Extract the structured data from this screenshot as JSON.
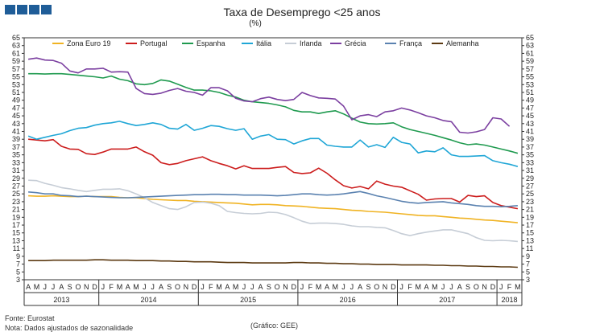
{
  "header": {
    "title": "Taxa de Desemprego <25 anos",
    "subtitle": "(%)"
  },
  "footer": {
    "source": "Fonte: Eurostat",
    "note": "Nota: Dados ajustados de sazonalidade",
    "credit": "(Gráfico: GEE)"
  },
  "colors": {
    "logo": "#1f5d98",
    "axis": "#333333"
  },
  "chart_data": {
    "type": "line",
    "title": "Taxa de Desemprego <25 anos",
    "subtitle": "(%)",
    "xlabel": "",
    "ylabel": "%",
    "ylim": [
      3,
      65
    ],
    "yticks": [
      3,
      5,
      7,
      9,
      11,
      13,
      15,
      17,
      19,
      21,
      23,
      25,
      27,
      29,
      31,
      33,
      35,
      37,
      39,
      41,
      43,
      45,
      47,
      49,
      51,
      53,
      55,
      57,
      59,
      61,
      63,
      65
    ],
    "grid": false,
    "legend_position": "top",
    "month_labels": [
      "A",
      "M",
      "J",
      "J",
      "A",
      "S",
      "O",
      "N",
      "D",
      "J",
      "F",
      "M",
      "A",
      "M",
      "J",
      "J",
      "A",
      "S",
      "O",
      "N",
      "D",
      "J",
      "F",
      "M",
      "A",
      "M",
      "J",
      "J",
      "A",
      "S",
      "O",
      "N",
      "D",
      "J",
      "F",
      "M",
      "A",
      "M",
      "J",
      "J",
      "A",
      "S",
      "O",
      "N",
      "D",
      "J",
      "F",
      "M",
      "A",
      "M",
      "J",
      "J",
      "A",
      "S",
      "O",
      "N",
      "D",
      "J",
      "F",
      "M"
    ],
    "year_groups": [
      {
        "label": "2013",
        "start": 0,
        "count": 9
      },
      {
        "label": "2014",
        "start": 9,
        "count": 12
      },
      {
        "label": "2015",
        "start": 21,
        "count": 12
      },
      {
        "label": "2016",
        "start": 33,
        "count": 12
      },
      {
        "label": "2017",
        "start": 45,
        "count": 12
      },
      {
        "label": "2018",
        "start": 57,
        "count": 3
      }
    ],
    "series": [
      {
        "name": "Zona Euro 19",
        "color": "#f0b323",
        "values": [
          24.5,
          24.4,
          24.4,
          24.5,
          24.4,
          24.3,
          24.3,
          24.4,
          24.3,
          24.3,
          24.3,
          24.1,
          24.0,
          24.0,
          23.8,
          23.6,
          23.5,
          23.4,
          23.3,
          23.3,
          23.1,
          23.0,
          22.9,
          22.8,
          22.7,
          22.6,
          22.4,
          22.2,
          22.3,
          22.3,
          22.2,
          22.0,
          21.9,
          21.8,
          21.6,
          21.4,
          21.3,
          21.2,
          21.0,
          20.8,
          20.7,
          20.5,
          20.4,
          20.3,
          20.1,
          19.9,
          19.7,
          19.5,
          19.4,
          19.4,
          19.2,
          19.0,
          18.8,
          18.7,
          18.5,
          18.3,
          18.2,
          18.0,
          17.8,
          17.6
        ]
      },
      {
        "name": "Portugal",
        "color": "#cc1d1d",
        "values": [
          39.0,
          38.8,
          38.6,
          38.9,
          37.2,
          36.5,
          36.4,
          35.3,
          35.1,
          35.7,
          36.5,
          36.5,
          36.5,
          37.0,
          35.8,
          34.9,
          33.0,
          32.5,
          32.8,
          33.5,
          34.0,
          34.5,
          33.5,
          32.8,
          32.2,
          31.4,
          32.2,
          31.5,
          31.5,
          31.5,
          31.8,
          32.0,
          30.5,
          30.2,
          30.4,
          31.6,
          30.3,
          28.6,
          27.1,
          26.5,
          26.9,
          26.3,
          28.3,
          27.5,
          27.0,
          26.7,
          25.8,
          24.9,
          23.4,
          23.7,
          23.8,
          23.8,
          22.9,
          24.6,
          24.3,
          24.5,
          22.8,
          22.0,
          21.6,
          21.2
        ]
      },
      {
        "name": "Espanha",
        "color": "#1f9a4f",
        "values": [
          55.8,
          55.8,
          55.7,
          55.8,
          55.8,
          55.6,
          55.4,
          55.2,
          55.0,
          54.7,
          55.2,
          54.4,
          54.0,
          53.2,
          53.0,
          53.3,
          54.2,
          53.9,
          53.1,
          52.3,
          51.6,
          51.6,
          51.4,
          51.0,
          50.3,
          49.8,
          49.0,
          48.6,
          48.4,
          48.2,
          47.8,
          47.3,
          46.4,
          46.0,
          46.0,
          45.6,
          46.0,
          46.3,
          45.5,
          44.4,
          43.4,
          43.0,
          42.9,
          43.0,
          43.2,
          42.2,
          41.5,
          41.0,
          40.5,
          40.0,
          39.4,
          38.8,
          38.1,
          37.6,
          37.8,
          37.5,
          37.0,
          36.5,
          36.0,
          35.4
        ]
      },
      {
        "name": "Itália",
        "color": "#1fa6d6",
        "values": [
          39.8,
          39.0,
          39.5,
          40.0,
          40.4,
          41.2,
          41.8,
          42.0,
          42.6,
          43.0,
          43.2,
          43.6,
          43.0,
          42.5,
          42.8,
          43.2,
          42.8,
          41.8,
          41.6,
          42.8,
          41.3,
          41.8,
          42.5,
          42.3,
          41.7,
          41.3,
          41.7,
          39.0,
          39.8,
          40.2,
          39.0,
          38.9,
          37.8,
          38.6,
          39.2,
          39.2,
          37.5,
          37.2,
          37.0,
          37.0,
          38.8,
          37.0,
          37.6,
          36.9,
          39.5,
          38.2,
          37.8,
          35.5,
          36.0,
          35.8,
          36.8,
          35.0,
          34.6,
          34.6,
          34.7,
          34.8,
          33.5,
          33.0,
          32.6,
          32.0
        ]
      },
      {
        "name": "Irlanda",
        "color": "#c6cdd6",
        "values": [
          28.5,
          28.4,
          27.7,
          27.2,
          26.6,
          26.3,
          25.9,
          25.6,
          25.9,
          26.2,
          26.2,
          26.3,
          25.8,
          25.0,
          24.0,
          22.8,
          22.0,
          21.2,
          21.0,
          21.7,
          22.8,
          22.9,
          22.6,
          22.0,
          20.5,
          20.2,
          20.0,
          19.9,
          20.0,
          20.3,
          20.2,
          19.7,
          18.9,
          18.0,
          17.4,
          17.5,
          17.5,
          17.4,
          17.2,
          16.8,
          16.6,
          16.6,
          16.4,
          16.3,
          15.6,
          14.8,
          14.3,
          14.8,
          15.2,
          15.5,
          15.8,
          15.8,
          15.3,
          14.8,
          13.8,
          13.1,
          13.0,
          13.1,
          13.0,
          12.8
        ]
      },
      {
        "name": "Grécia",
        "color": "#7b3fa0",
        "values": [
          59.5,
          59.8,
          59.3,
          59.2,
          58.5,
          56.5,
          56.0,
          57.0,
          57.0,
          57.2,
          56.2,
          56.3,
          56.2,
          52.0,
          50.7,
          50.5,
          50.8,
          51.5,
          52.0,
          51.3,
          51.0,
          50.3,
          52.2,
          52.2,
          51.4,
          49.5,
          48.8,
          48.6,
          49.4,
          49.8,
          49.2,
          48.9,
          49.2,
          51.0,
          50.2,
          49.6,
          49.5,
          49.3,
          47.5,
          44.0,
          45.0,
          45.3,
          44.8,
          46.0,
          46.3,
          47.0,
          46.5,
          45.8,
          45.0,
          44.5,
          43.8,
          43.5,
          40.8,
          40.6,
          40.9,
          41.5,
          44.5,
          44.2,
          42.3,
          null
        ]
      },
      {
        "name": "França",
        "color": "#5b82b0",
        "values": [
          25.5,
          25.3,
          25.0,
          25.0,
          24.6,
          24.5,
          24.3,
          24.4,
          24.3,
          24.2,
          24.1,
          24.0,
          24.0,
          24.1,
          24.2,
          24.3,
          24.4,
          24.5,
          24.6,
          24.7,
          24.8,
          24.8,
          24.9,
          24.9,
          24.8,
          24.8,
          24.7,
          24.7,
          24.7,
          24.6,
          24.5,
          24.6,
          24.8,
          25.0,
          25.0,
          24.8,
          24.7,
          24.8,
          25.0,
          25.3,
          25.6,
          25.1,
          24.5,
          24.1,
          23.6,
          23.1,
          22.8,
          22.6,
          22.8,
          22.9,
          23.0,
          22.7,
          22.5,
          22.3,
          22.0,
          21.8,
          21.8,
          21.7,
          21.8,
          22.0
        ]
      },
      {
        "name": "Alemanha",
        "color": "#5c3a12",
        "values": [
          7.9,
          7.9,
          7.9,
          8.0,
          8.0,
          8.0,
          8.0,
          8.0,
          8.1,
          8.1,
          8.0,
          8.0,
          8.0,
          7.9,
          7.9,
          7.9,
          7.8,
          7.8,
          7.7,
          7.7,
          7.6,
          7.6,
          7.6,
          7.5,
          7.4,
          7.4,
          7.4,
          7.3,
          7.3,
          7.3,
          7.3,
          7.3,
          7.4,
          7.4,
          7.3,
          7.3,
          7.2,
          7.2,
          7.1,
          7.1,
          7.0,
          7.0,
          6.9,
          6.9,
          6.9,
          6.8,
          6.8,
          6.8,
          6.8,
          6.7,
          6.7,
          6.6,
          6.6,
          6.5,
          6.5,
          6.4,
          6.4,
          6.3,
          6.3,
          6.2
        ]
      }
    ]
  }
}
